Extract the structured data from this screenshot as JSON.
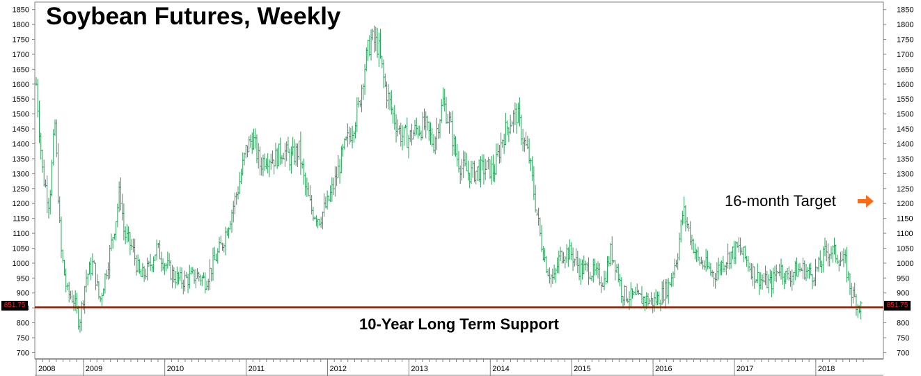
{
  "chart_data": {
    "type": "bar",
    "subtype": "ohlc-weekly",
    "title": "Soybean Futures, Weekly",
    "xlabel": "",
    "ylabel": "",
    "ylim": [
      680,
      1875
    ],
    "yticks": [
      700,
      750,
      800,
      850,
      900,
      950,
      1000,
      1050,
      1100,
      1150,
      1200,
      1250,
      1300,
      1350,
      1400,
      1450,
      1500,
      1550,
      1600,
      1650,
      1700,
      1750,
      1800,
      1850
    ],
    "xlim": [
      2008.42,
      2018.6
    ],
    "xticks": [
      {
        "label": "2008",
        "x": 2008.42
      },
      {
        "label": "2009",
        "x": 2009.0
      },
      {
        "label": "2010",
        "x": 2010.0
      },
      {
        "label": "2011",
        "x": 2011.0
      },
      {
        "label": "2012",
        "x": 2012.0
      },
      {
        "label": "2013",
        "x": 2013.0
      },
      {
        "label": "2014",
        "x": 2014.0
      },
      {
        "label": "2015",
        "x": 2015.0
      },
      {
        "label": "2016",
        "x": 2016.0
      },
      {
        "label": "2017",
        "x": 2017.0
      },
      {
        "label": "2018",
        "x": 2018.0
      }
    ],
    "series_color": "#2e9e5c",
    "price_path": [
      [
        2008.42,
        1600
      ],
      [
        2008.5,
        1300
      ],
      [
        2008.58,
        1200
      ],
      [
        2008.65,
        1470
      ],
      [
        2008.72,
        1050
      ],
      [
        2008.8,
        900
      ],
      [
        2008.88,
        880
      ],
      [
        2008.95,
        800
      ],
      [
        2009.03,
        950
      ],
      [
        2009.12,
        1000
      ],
      [
        2009.2,
        870
      ],
      [
        2009.3,
        1000
      ],
      [
        2009.4,
        1150
      ],
      [
        2009.45,
        1250
      ],
      [
        2009.5,
        1100
      ],
      [
        2009.6,
        1050
      ],
      [
        2009.7,
        950
      ],
      [
        2009.8,
        980
      ],
      [
        2009.9,
        1050
      ],
      [
        2010.0,
        1000
      ],
      [
        2010.1,
        960
      ],
      [
        2010.2,
        940
      ],
      [
        2010.3,
        950
      ],
      [
        2010.4,
        960
      ],
      [
        2010.5,
        940
      ],
      [
        2010.6,
        1000
      ],
      [
        2010.7,
        1060
      ],
      [
        2010.8,
        1150
      ],
      [
        2010.9,
        1250
      ],
      [
        2011.0,
        1380
      ],
      [
        2011.08,
        1420
      ],
      [
        2011.17,
        1330
      ],
      [
        2011.25,
        1360
      ],
      [
        2011.35,
        1350
      ],
      [
        2011.45,
        1380
      ],
      [
        2011.55,
        1350
      ],
      [
        2011.65,
        1380
      ],
      [
        2011.72,
        1260
      ],
      [
        2011.8,
        1180
      ],
      [
        2011.9,
        1150
      ],
      [
        2012.0,
        1200
      ],
      [
        2012.1,
        1280
      ],
      [
        2012.2,
        1380
      ],
      [
        2012.3,
        1450
      ],
      [
        2012.38,
        1520
      ],
      [
        2012.45,
        1650
      ],
      [
        2012.53,
        1750
      ],
      [
        2012.62,
        1730
      ],
      [
        2012.7,
        1600
      ],
      [
        2012.8,
        1500
      ],
      [
        2012.9,
        1430
      ],
      [
        2013.0,
        1420
      ],
      [
        2013.1,
        1450
      ],
      [
        2013.2,
        1460
      ],
      [
        2013.3,
        1400
      ],
      [
        2013.42,
        1540
      ],
      [
        2013.5,
        1470
      ],
      [
        2013.58,
        1360
      ],
      [
        2013.65,
        1320
      ],
      [
        2013.75,
        1300
      ],
      [
        2013.85,
        1310
      ],
      [
        2013.95,
        1320
      ],
      [
        2014.05,
        1310
      ],
      [
        2014.15,
        1420
      ],
      [
        2014.25,
        1480
      ],
      [
        2014.33,
        1500
      ],
      [
        2014.4,
        1420
      ],
      [
        2014.48,
        1350
      ],
      [
        2014.55,
        1210
      ],
      [
        2014.62,
        1080
      ],
      [
        2014.7,
        980
      ],
      [
        2014.78,
        940
      ],
      [
        2014.85,
        1020
      ],
      [
        2014.92,
        1040
      ],
      [
        2015.0,
        1030
      ],
      [
        2015.1,
        980
      ],
      [
        2015.2,
        980
      ],
      [
        2015.3,
        960
      ],
      [
        2015.4,
        940
      ],
      [
        2015.48,
        1040
      ],
      [
        2015.55,
        990
      ],
      [
        2015.62,
        900
      ],
      [
        2015.7,
        890
      ],
      [
        2015.8,
        880
      ],
      [
        2015.9,
        880
      ],
      [
        2016.0,
        870
      ],
      [
        2016.1,
        890
      ],
      [
        2016.2,
        930
      ],
      [
        2016.3,
        1030
      ],
      [
        2016.37,
        1180
      ],
      [
        2016.45,
        1100
      ],
      [
        2016.55,
        1010
      ],
      [
        2016.65,
        990
      ],
      [
        2016.75,
        960
      ],
      [
        2016.85,
        1000
      ],
      [
        2016.95,
        1030
      ],
      [
        2017.05,
        1050
      ],
      [
        2017.15,
        1010
      ],
      [
        2017.25,
        960
      ],
      [
        2017.35,
        940
      ],
      [
        2017.45,
        930
      ],
      [
        2017.55,
        990
      ],
      [
        2017.65,
        950
      ],
      [
        2017.75,
        975
      ],
      [
        2017.85,
        980
      ],
      [
        2017.95,
        960
      ],
      [
        2018.05,
        990
      ],
      [
        2018.12,
        1040
      ],
      [
        2018.2,
        1040
      ],
      [
        2018.28,
        1020
      ],
      [
        2018.36,
        1000
      ],
      [
        2018.44,
        900
      ],
      [
        2018.52,
        860
      ],
      [
        2018.56,
        850
      ]
    ],
    "reference_line": {
      "value": 851.75,
      "label": "10-Year Long Term Support",
      "color": "#8b1a00"
    },
    "last_price_label": "851.75",
    "annotations": [
      {
        "text": "16-month Target",
        "arrow_color": "#ff6a13"
      }
    ],
    "grid": false,
    "legend": "none"
  }
}
